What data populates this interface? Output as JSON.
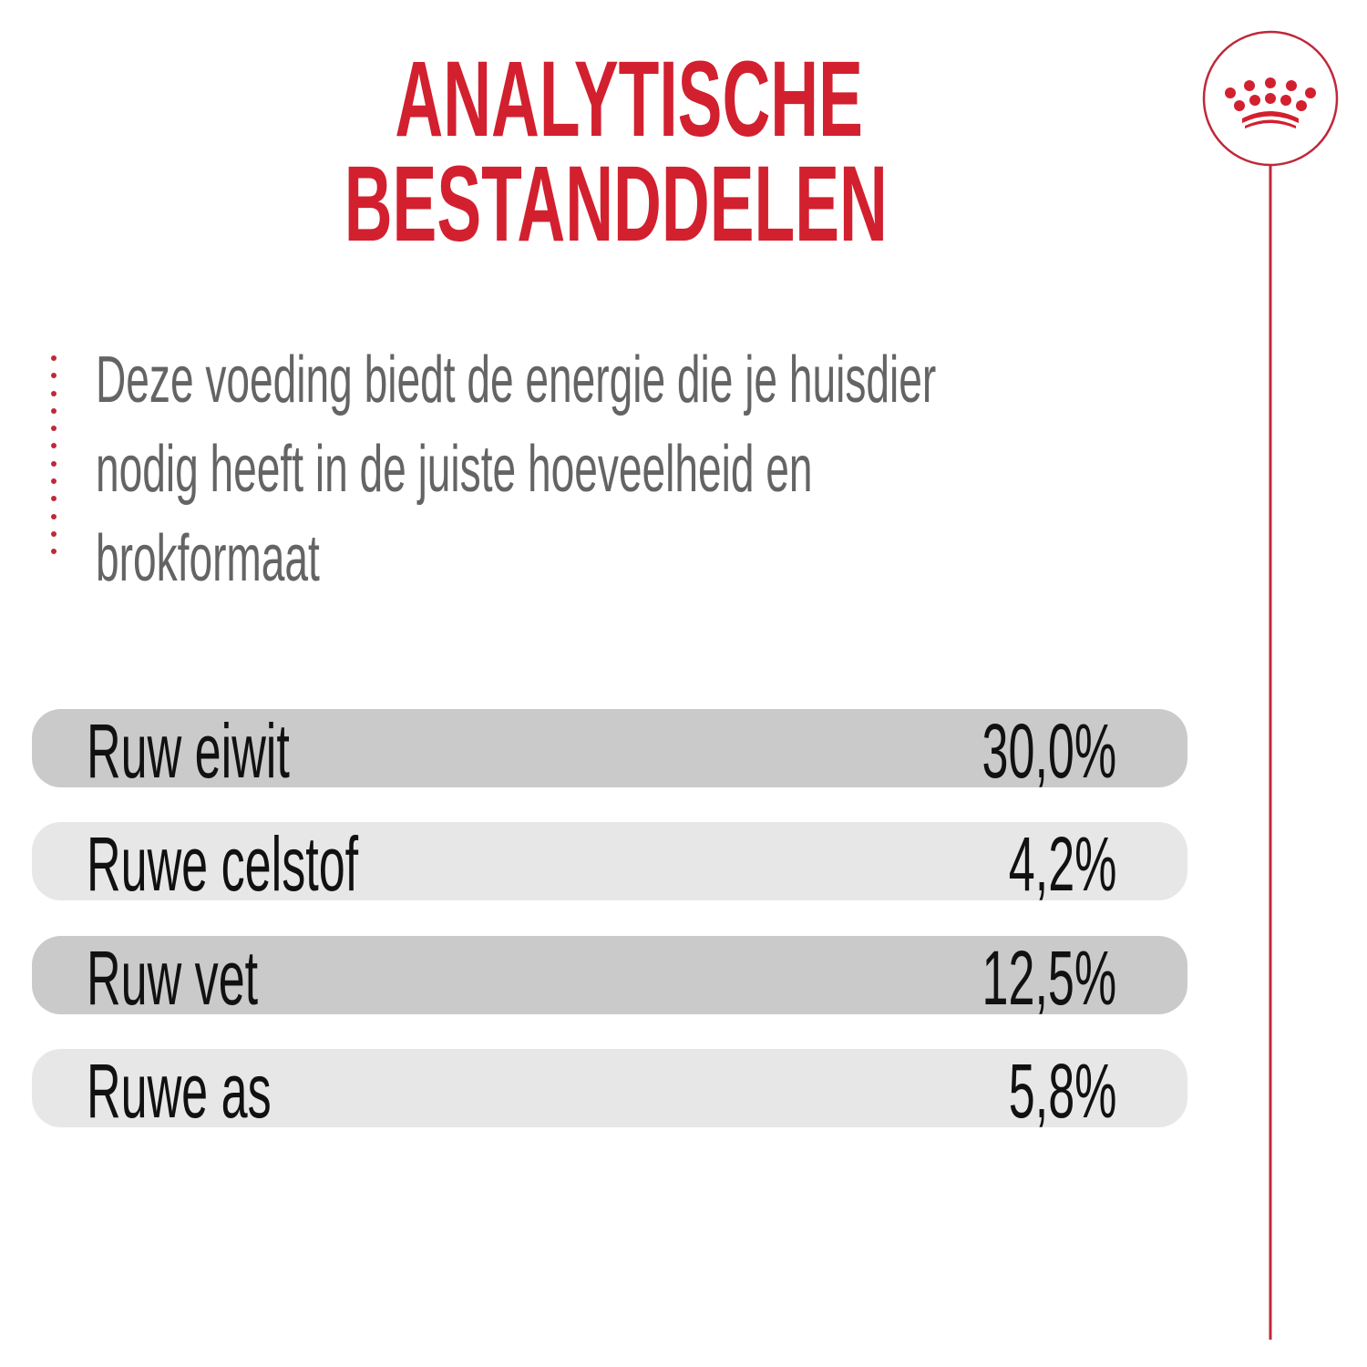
{
  "title": {
    "line1": "ANALYTISCHE",
    "line2": "BESTANDDELEN"
  },
  "intro": {
    "lines": [
      "Deze voeding biedt de energie die je huisdier",
      "nodig heeft in de juiste hoeveelheid en",
      "brokformaat"
    ]
  },
  "nutrients": [
    {
      "label": "Ruw eiwit",
      "value": "30,0%"
    },
    {
      "label": "Ruwe celstof",
      "value": "4,2%"
    },
    {
      "label": "Ruw vet",
      "value": "12,5%"
    },
    {
      "label": "Ruwe as",
      "value": "5,8%"
    }
  ],
  "colors": {
    "accent": "#d2202f",
    "row_dark": "#cbcacb",
    "row_light": "#e8e7e8",
    "text_gray": "#646464"
  },
  "logo": {
    "icon": "crown-icon"
  }
}
